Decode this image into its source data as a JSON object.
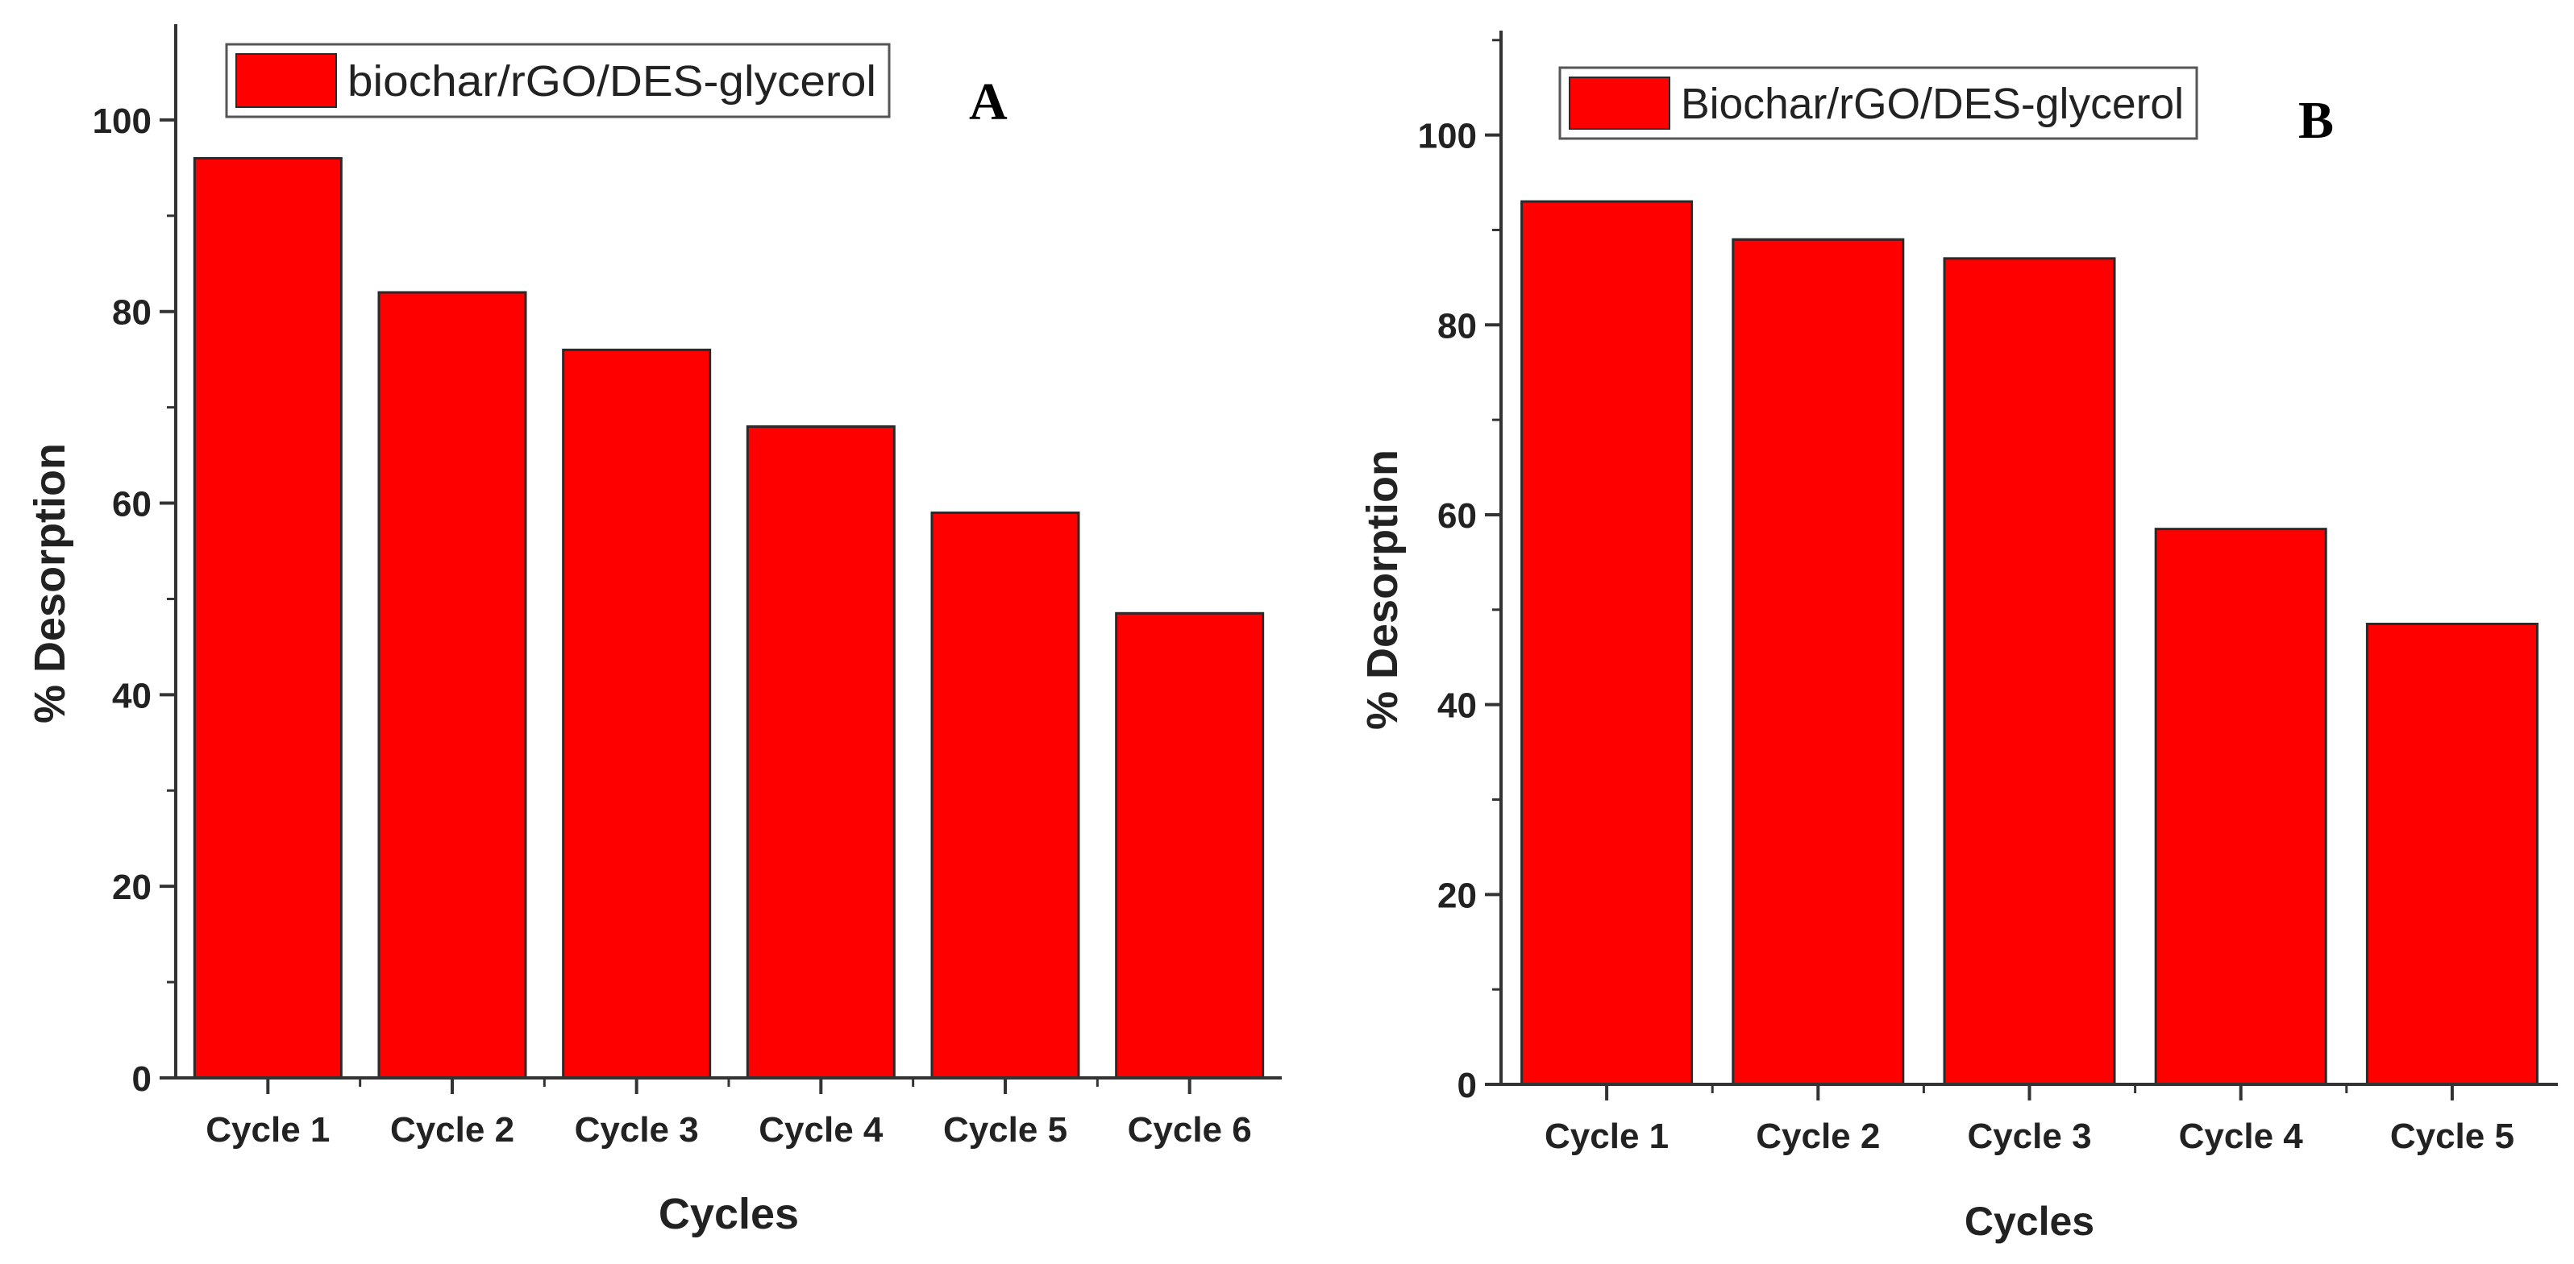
{
  "chart_data": [
    {
      "type": "bar",
      "panel_label": "A",
      "title": "",
      "xlabel": "Cycles",
      "ylabel": "% Desorption",
      "categories": [
        "Cycle 1",
        "Cycle 2",
        "Cycle 3",
        "Cycle 4",
        "Cycle 5",
        "Cycle 6"
      ],
      "series": [
        {
          "name": "biochar/rGO/DES-glycerol",
          "values": [
            96,
            82,
            76,
            68,
            59,
            48.5
          ]
        }
      ],
      "ylim": [
        0,
        110
      ],
      "yticks": [
        0,
        20,
        40,
        60,
        80,
        100
      ],
      "ytick_labels": [
        "0",
        "20",
        "40",
        "60",
        "80",
        "100"
      ],
      "legend_position": "top",
      "bar_color": "#ff0000",
      "grid": false
    },
    {
      "type": "bar",
      "panel_label": "B",
      "title": "",
      "xlabel": "Cycles",
      "ylabel": "% Desorption",
      "categories": [
        "Cycle 1",
        "Cycle 2",
        "Cycle 3",
        "Cycle 4",
        "Cycle 5"
      ],
      "series": [
        {
          "name": "Biochar/rGO/DES-glycerol",
          "values": [
            93,
            89,
            87,
            58.5,
            48.5
          ]
        }
      ],
      "ylim": [
        0,
        111
      ],
      "yticks": [
        0,
        20,
        40,
        60,
        80,
        100
      ],
      "ytick_labels": [
        "0",
        "20",
        "40",
        "60",
        "80",
        "100"
      ],
      "legend_position": "top",
      "bar_color": "#ff0000",
      "grid": false
    }
  ]
}
